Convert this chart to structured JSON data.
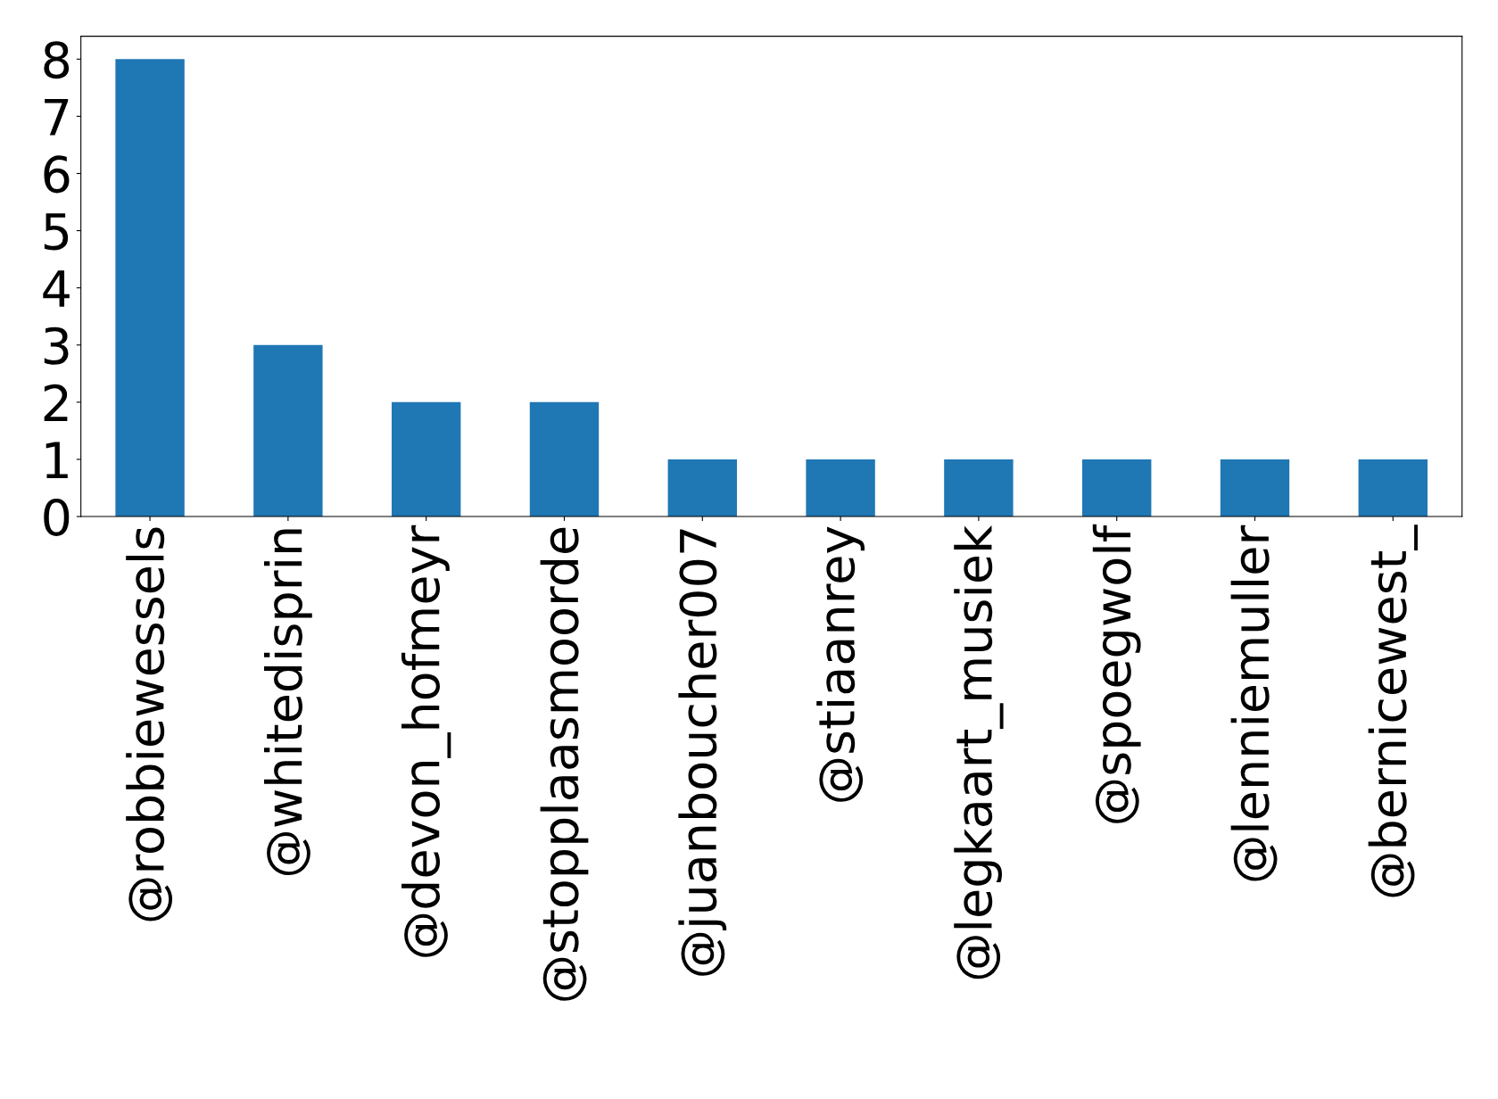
{
  "chart_data": {
    "type": "bar",
    "categories": [
      "@robbiewessels",
      "@whitedisprin",
      "@devon_hofmeyr",
      "@stopplaasmoorde",
      "@juanboucher007",
      "@stiaanrey",
      "@legkaart_musiek",
      "@spoegwolf",
      "@lenniemuller",
      "@bernicewest_"
    ],
    "values": [
      8,
      3,
      2,
      2,
      1,
      1,
      1,
      1,
      1,
      1
    ],
    "color": "#1f77b4",
    "ylim": [
      0,
      8.4
    ],
    "yticks": [
      0,
      1,
      2,
      3,
      4,
      5,
      6,
      7,
      8
    ],
    "grid": false,
    "legend": false
  }
}
